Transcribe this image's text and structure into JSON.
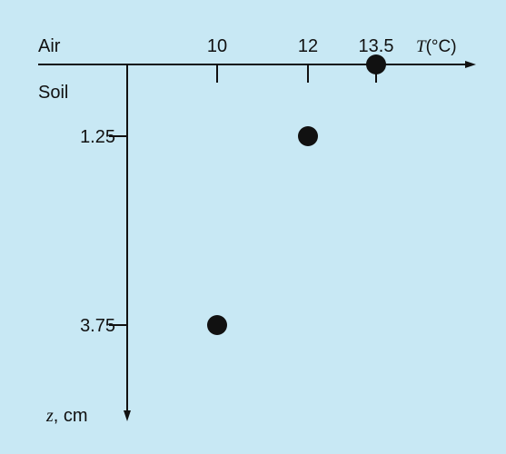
{
  "chart_data": {
    "type": "scatter",
    "region_labels": {
      "top": "Air",
      "bottom": "Soil"
    },
    "x_axis": {
      "label_var": "T",
      "label_unit": "(°C)",
      "ticks": [
        {
          "value": 10,
          "label": "10"
        },
        {
          "value": 12,
          "label": "12"
        },
        {
          "value": 13.5,
          "label": "13.5"
        }
      ]
    },
    "y_axis": {
      "label_var": "z",
      "label_unit": ", cm",
      "direction": "downward",
      "ticks": [
        {
          "value": 1.25,
          "label": "1.25"
        },
        {
          "value": 3.75,
          "label": "3.75"
        }
      ]
    },
    "points": [
      {
        "x": 13.5,
        "y": 0
      },
      {
        "x": 12,
        "y": 1.25
      },
      {
        "x": 10,
        "y": 3.75
      }
    ],
    "colors": {
      "background": "#c8e8f4",
      "ink": "#111111"
    }
  }
}
